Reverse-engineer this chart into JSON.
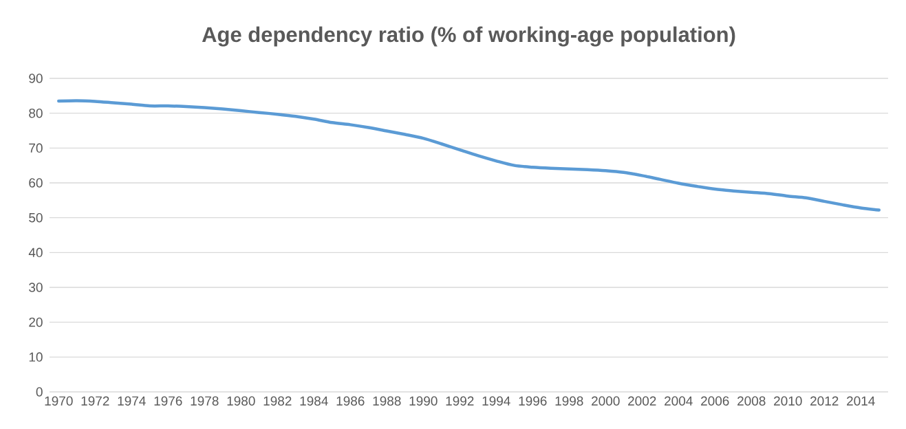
{
  "chart_data": {
    "type": "line",
    "title": "Age dependency ratio (% of working-age population)",
    "categories": [
      "1970",
      null,
      "1972",
      null,
      "1974",
      null,
      "1976",
      null,
      "1978",
      null,
      "1980",
      null,
      "1982",
      null,
      "1984",
      null,
      "1986",
      null,
      "1988",
      null,
      "1990",
      null,
      "1992",
      null,
      "1994",
      null,
      "1996",
      null,
      "1998",
      null,
      "2000",
      null,
      "2002",
      null,
      "2004",
      null,
      "2006",
      null,
      "2008",
      null,
      "2010",
      null,
      "2012",
      null,
      "2014",
      null
    ],
    "series": [
      {
        "color": "#5b9bd5",
        "values": [
          83.5,
          83.6,
          83.4,
          83.0,
          82.6,
          82.1,
          82.1,
          81.9,
          81.6,
          81.2,
          80.7,
          80.2,
          79.7,
          79.1,
          78.3,
          77.3,
          76.7,
          75.9,
          74.9,
          73.9,
          72.8,
          71.2,
          69.5,
          67.8,
          66.3,
          65.0,
          64.5,
          64.2,
          64.0,
          63.8,
          63.5,
          63.0,
          62.1,
          61.0,
          59.9,
          59.0,
          58.2,
          57.7,
          57.3,
          56.9,
          56.2,
          55.7,
          54.7,
          53.7,
          52.8,
          52.2
        ]
      }
    ],
    "ylim": [
      0,
      90
    ],
    "yticks": [
      0,
      10,
      20,
      30,
      40,
      50,
      60,
      70,
      80,
      90
    ],
    "grid": "y",
    "line_style": "solid"
  }
}
